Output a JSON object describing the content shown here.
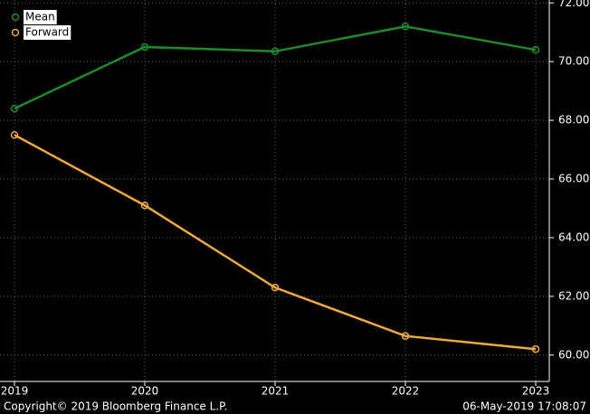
{
  "chart_data": {
    "type": "line",
    "categories": [
      "2019",
      "2020",
      "2021",
      "2022",
      "2023"
    ],
    "series": [
      {
        "name": "Mean",
        "color": "#1f8a2a",
        "values": [
          68.4,
          70.5,
          70.35,
          71.2,
          70.4
        ]
      },
      {
        "name": "Forward",
        "color": "#f2a93b",
        "values": [
          67.5,
          65.1,
          62.3,
          60.65,
          60.2
        ]
      }
    ],
    "ylim": [
      59.1,
      72.1
    ],
    "yticks": [
      {
        "value": 60,
        "label": "60.00"
      },
      {
        "value": 62,
        "label": "62.00"
      },
      {
        "value": 64,
        "label": "64.00"
      },
      {
        "value": 66,
        "label": "66.00"
      },
      {
        "value": 68,
        "label": "68.00"
      },
      {
        "value": 70,
        "label": "70.00"
      },
      {
        "value": 72,
        "label": "72.00"
      }
    ],
    "grid": true,
    "footer_left": "Copyright© 2019 Bloomberg Finance L.P.",
    "footer_right": "06-May-2019 17:08:07"
  }
}
